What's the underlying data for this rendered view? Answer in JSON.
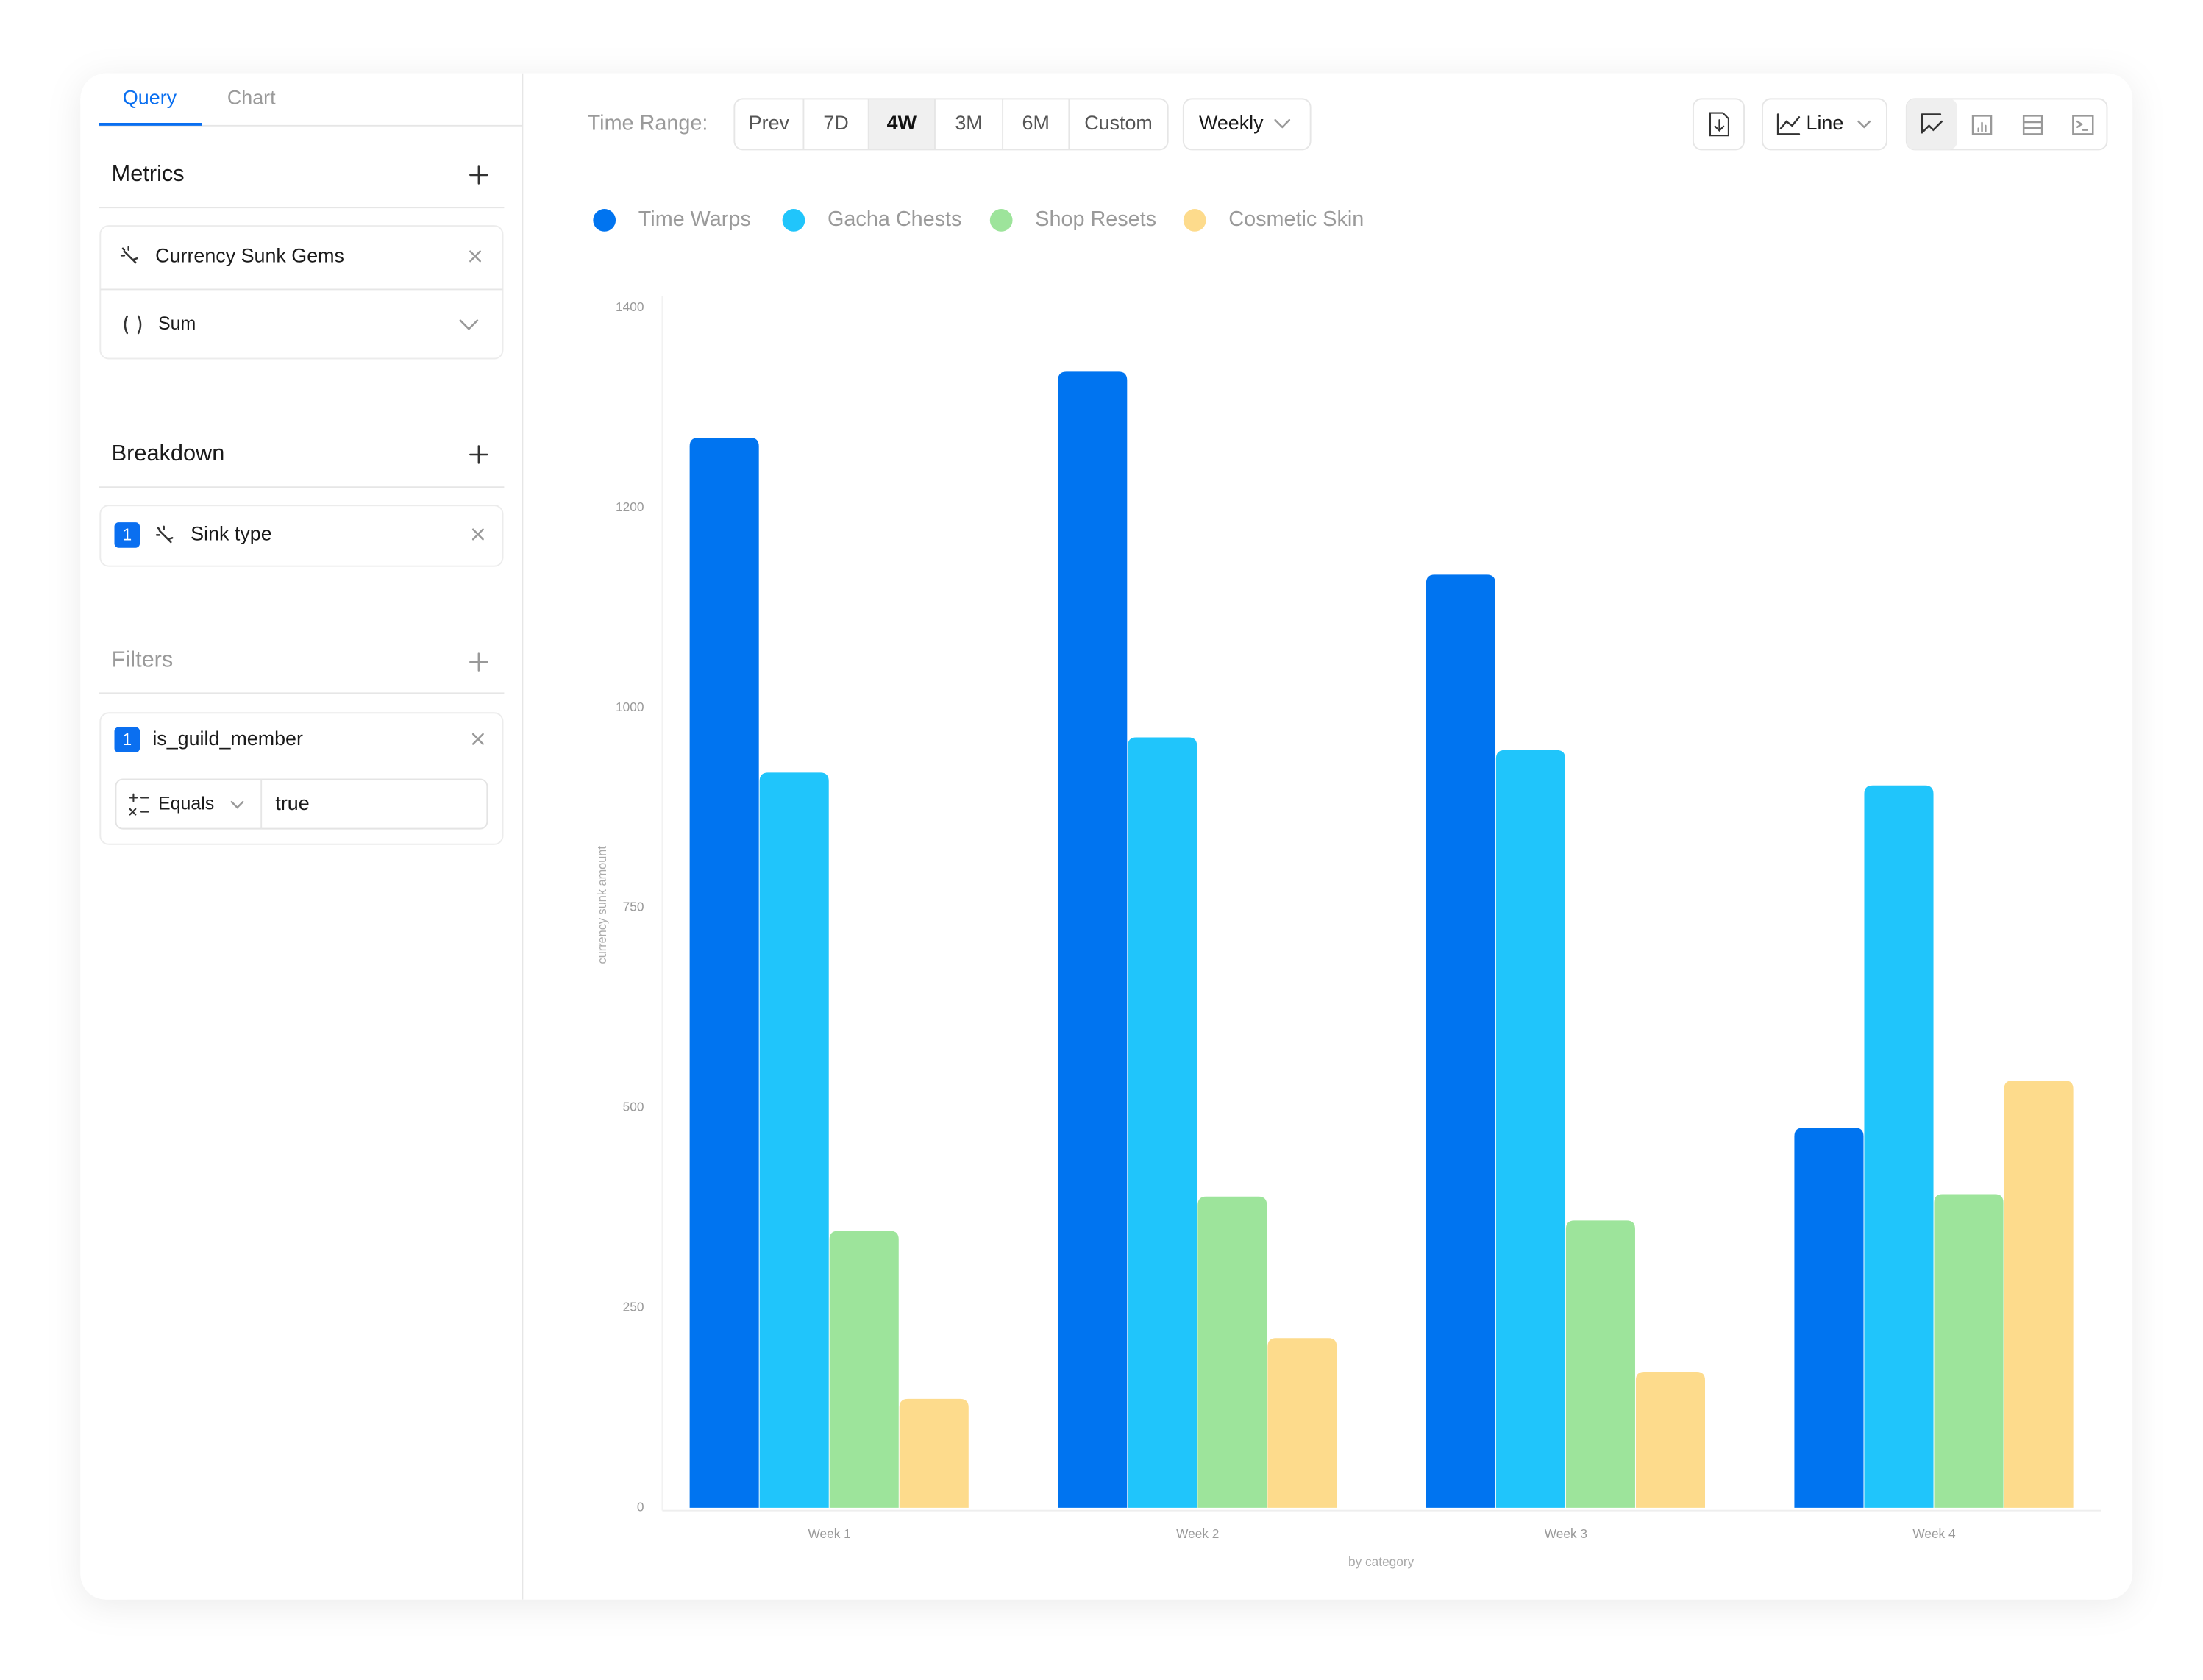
{
  "tabs": [
    "Query",
    "Chart"
  ],
  "sidebar": {
    "metrics": {
      "title": "Metrics",
      "metric": "Currency Sunk Gems",
      "aggregation": "Sum"
    },
    "breakdown": {
      "title": "Breakdown",
      "index": "1",
      "field": "Sink type"
    },
    "filters": {
      "title": "Filters",
      "index": "1",
      "field": "is_guild_member",
      "operator": "Equals",
      "value": "true"
    }
  },
  "toolbar": {
    "time_range_label": "Time Range:",
    "ranges": [
      "Prev",
      "7D",
      "4W",
      "3M",
      "6M",
      "Custom"
    ],
    "selected_range": "4W",
    "interval": "Weekly",
    "chart_kind": "Line"
  },
  "chart_data": {
    "type": "bar",
    "y_label": "currency sunk amount",
    "x_label": "by category",
    "categories": [
      "Week 1",
      "Week 2",
      "Week 3",
      "Week 4"
    ],
    "series": [
      {
        "name": "Time Warps",
        "color": "#0074f0",
        "values": [
          1270,
          1336,
          1133,
          475
        ]
      },
      {
        "name": "Gacha Chests",
        "color": "#20c5fb",
        "values": [
          919,
          963,
          947,
          903
        ]
      },
      {
        "name": "Shop Resets",
        "color": "#9de49b",
        "values": [
          346,
          389,
          359,
          392
        ]
      },
      {
        "name": "Cosmetic Skin",
        "color": "#fddb8c",
        "values": [
          136,
          212,
          170,
          534
        ]
      }
    ],
    "ylim": [
      0,
      1400
    ],
    "yticks": [
      0,
      250,
      500,
      750,
      1000,
      1200,
      1400
    ],
    "grid": false,
    "legend": "top"
  }
}
